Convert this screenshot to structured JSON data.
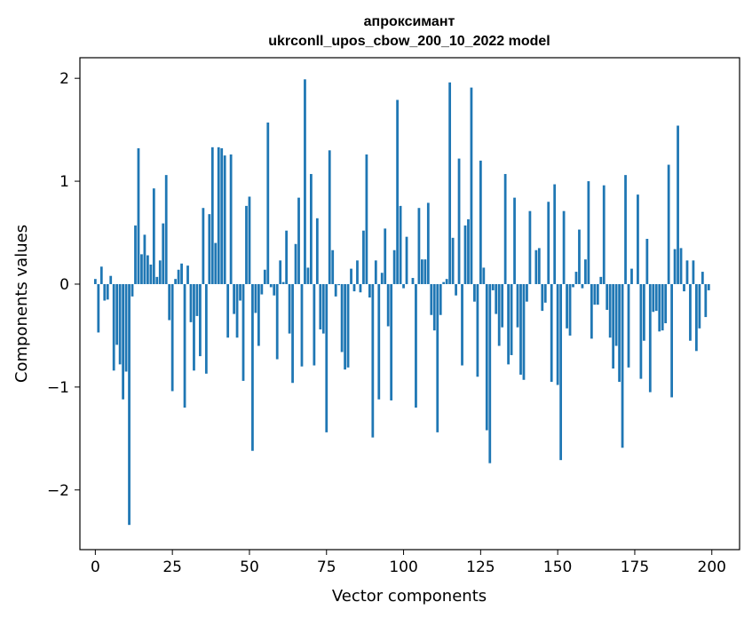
{
  "chart_data": {
    "type": "bar",
    "title": "апроксимант",
    "subtitle": "ukrconll_upos_cbow_200_10_2022 model",
    "xlabel": "Vector components",
    "ylabel": "Components values",
    "xlim": [
      -5,
      209
    ],
    "ylim": [
      -2.58,
      2.2
    ],
    "xticks": [
      0,
      25,
      50,
      75,
      100,
      125,
      150,
      175,
      200
    ],
    "xtick_labels": [
      "0",
      "25",
      "50",
      "75",
      "100",
      "125",
      "150",
      "175",
      "200"
    ],
    "yticks": [
      -2,
      -1,
      0,
      1,
      2
    ],
    "ytick_labels": [
      "−2",
      "−1",
      "0",
      "1",
      "2"
    ],
    "grid": false,
    "bar_color": "#1f77b4",
    "x": [
      0,
      1,
      2,
      3,
      4,
      5,
      6,
      7,
      8,
      9,
      10,
      11,
      12,
      13,
      14,
      15,
      16,
      17,
      18,
      19,
      20,
      21,
      22,
      23,
      24,
      25,
      26,
      27,
      28,
      29,
      30,
      31,
      32,
      33,
      34,
      35,
      36,
      37,
      38,
      39,
      40,
      41,
      42,
      43,
      44,
      45,
      46,
      47,
      48,
      49,
      50,
      51,
      52,
      53,
      54,
      55,
      56,
      57,
      58,
      59,
      60,
      61,
      62,
      63,
      64,
      65,
      66,
      67,
      68,
      69,
      70,
      71,
      72,
      73,
      74,
      75,
      76,
      77,
      78,
      79,
      80,
      81,
      82,
      83,
      84,
      85,
      86,
      87,
      88,
      89,
      90,
      91,
      92,
      93,
      94,
      95,
      96,
      97,
      98,
      99,
      100,
      101,
      102,
      103,
      104,
      105,
      106,
      107,
      108,
      109,
      110,
      111,
      112,
      113,
      114,
      115,
      116,
      117,
      118,
      119,
      120,
      121,
      122,
      123,
      124,
      125,
      126,
      127,
      128,
      129,
      130,
      131,
      132,
      133,
      134,
      135,
      136,
      137,
      138,
      139,
      140,
      141,
      142,
      143,
      144,
      145,
      146,
      147,
      148,
      149,
      150,
      151,
      152,
      153,
      154,
      155,
      156,
      157,
      158,
      159,
      160,
      161,
      162,
      163,
      164,
      165,
      166,
      167,
      168,
      169,
      170,
      171,
      172,
      173,
      174,
      175,
      176,
      177,
      178,
      179,
      180,
      181,
      182,
      183,
      184,
      185,
      186,
      187,
      188,
      189,
      190,
      191,
      192,
      193,
      194,
      195,
      196,
      197,
      198,
      199
    ],
    "values": [
      0.05,
      -0.47,
      0.17,
      -0.16,
      -0.15,
      0.08,
      -0.84,
      -0.59,
      -0.78,
      -1.12,
      -0.85,
      -2.34,
      -0.12,
      0.57,
      1.32,
      0.29,
      0.48,
      0.28,
      0.19,
      0.93,
      0.07,
      0.23,
      0.59,
      1.06,
      -0.35,
      -1.04,
      0.05,
      0.14,
      0.2,
      -1.2,
      0.18,
      -0.37,
      -0.84,
      -0.31,
      -0.7,
      0.74,
      -0.87,
      0.68,
      1.33,
      0.4,
      1.33,
      1.32,
      1.25,
      -0.52,
      1.26,
      -0.29,
      -0.52,
      -0.16,
      -0.94,
      0.76,
      0.85,
      -1.62,
      -0.28,
      -0.6,
      -0.1,
      0.14,
      1.57,
      -0.03,
      -0.11,
      -0.73,
      0.23,
      0.02,
      0.52,
      -0.48,
      -0.96,
      0.39,
      0.84,
      -0.8,
      1.99,
      0.16,
      1.07,
      -0.79,
      0.64,
      -0.44,
      -0.48,
      -1.44,
      1.3,
      0.33,
      -0.12,
      -0.01,
      -0.66,
      -0.83,
      -0.81,
      0.15,
      -0.07,
      0.23,
      -0.08,
      0.52,
      1.26,
      -0.13,
      -1.49,
      0.23,
      -1.12,
      0.11,
      0.54,
      -0.41,
      -1.13,
      0.33,
      1.79,
      0.76,
      -0.04,
      0.46,
      0.0,
      0.06,
      -1.2,
      0.74,
      0.24,
      0.24,
      0.79,
      -0.3,
      -0.45,
      -1.44,
      -0.3,
      0.02,
      0.05,
      1.96,
      0.45,
      -0.11,
      1.22,
      -0.79,
      0.57,
      0.63,
      1.91,
      -0.17,
      -0.9,
      1.2,
      0.16,
      -1.42,
      -1.74,
      -0.06,
      -0.29,
      -0.6,
      -0.42,
      1.07,
      -0.78,
      -0.69,
      0.84,
      -0.42,
      -0.88,
      -0.93,
      -0.17,
      0.71,
      0.0,
      0.33,
      0.35,
      -0.26,
      -0.18,
      0.8,
      -0.95,
      0.97,
      -0.98,
      -1.71,
      0.71,
      -0.43,
      -0.5,
      -0.03,
      0.12,
      0.53,
      -0.04,
      0.24,
      1.0,
      -0.53,
      -0.2,
      -0.2,
      0.07,
      0.96,
      -0.25,
      -0.52,
      -0.82,
      -0.6,
      -0.95,
      -1.59,
      1.06,
      -0.81,
      0.15,
      0.0,
      0.87,
      -0.92,
      -0.55,
      0.44,
      -1.05,
      -0.27,
      -0.26,
      -0.46,
      -0.45,
      -0.38,
      1.16,
      -1.1,
      0.34,
      1.54,
      0.35,
      -0.07,
      0.23,
      -0.55,
      0.23,
      -0.65,
      -0.43,
      0.12,
      -0.32,
      -0.06
    ]
  }
}
